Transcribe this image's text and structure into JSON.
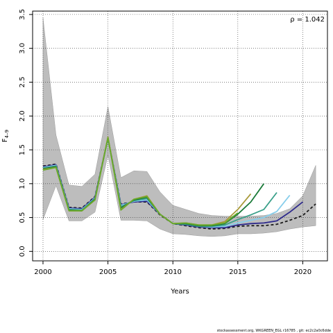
{
  "chart_data": {
    "type": "line",
    "title": "",
    "xlabel": "Years",
    "ylabel": "F",
    "ylabel_sub": "4–9",
    "xlim": [
      1999.2,
      2021.9
    ],
    "ylim": [
      -0.14,
      3.55
    ],
    "x_ticks": [
      2000,
      2005,
      2010,
      2015,
      2020
    ],
    "x_tick_labels": [
      "2000",
      "2005",
      "2010",
      "2015",
      "2020"
    ],
    "y_ticks": [
      0.0,
      0.5,
      1.0,
      1.5,
      2.0,
      2.5,
      3.0,
      3.5
    ],
    "y_tick_labels": [
      "0.0",
      "0.5",
      "1.0",
      "1.5",
      "2.0",
      "2.5",
      "3.0",
      "3.5"
    ],
    "grid": true,
    "annotation": "ρ = 1.042",
    "footer": "stockassessment.org, WKGREEN_EGL r16785 , git: ec2c2a0c6dde",
    "band": {
      "x": [
        2000,
        2001,
        2002,
        2003,
        2004,
        2005,
        2006,
        2007,
        2008,
        2009,
        2010,
        2011,
        2012,
        2013,
        2014,
        2015,
        2016,
        2017,
        2018,
        2019,
        2020,
        2021
      ],
      "lower": [
        0.47,
        0.97,
        0.45,
        0.45,
        0.58,
        1.42,
        0.46,
        0.46,
        0.45,
        0.33,
        0.26,
        0.25,
        0.23,
        0.22,
        0.23,
        0.26,
        0.26,
        0.27,
        0.29,
        0.33,
        0.36,
        0.38
      ],
      "upper": [
        3.45,
        1.72,
        0.98,
        0.96,
        1.14,
        2.14,
        1.09,
        1.19,
        1.18,
        0.88,
        0.68,
        0.62,
        0.56,
        0.53,
        0.52,
        0.52,
        0.52,
        0.53,
        0.56,
        0.63,
        0.82,
        1.27
      ]
    },
    "series": [
      {
        "color": "#1a1a1a",
        "dash": "4,3",
        "x": [
          2000,
          2001,
          2002,
          2003,
          2004,
          2005,
          2006,
          2007,
          2008,
          2009,
          2010,
          2011,
          2012,
          2013,
          2014,
          2015,
          2016,
          2017,
          2018,
          2019,
          2020,
          2021
        ],
        "values": [
          1.26,
          1.29,
          0.65,
          0.64,
          0.81,
          1.67,
          0.7,
          0.73,
          0.73,
          0.54,
          0.41,
          0.38,
          0.35,
          0.33,
          0.34,
          0.37,
          0.38,
          0.38,
          0.4,
          0.46,
          0.53,
          0.7
        ]
      },
      {
        "color": "#2e2a8c",
        "x": [
          2000,
          2001,
          2002,
          2003,
          2004,
          2005,
          2006,
          2007,
          2008,
          2009,
          2010,
          2011,
          2012,
          2013,
          2014,
          2015,
          2016,
          2017,
          2018,
          2019,
          2020
        ],
        "values": [
          1.25,
          1.28,
          0.64,
          0.63,
          0.8,
          1.67,
          0.69,
          0.73,
          0.74,
          0.55,
          0.41,
          0.39,
          0.36,
          0.35,
          0.35,
          0.39,
          0.41,
          0.42,
          0.45,
          0.58,
          0.73
        ]
      },
      {
        "color": "#87ceeb",
        "x": [
          2000,
          2001,
          2002,
          2003,
          2004,
          2005,
          2006,
          2007,
          2008,
          2009,
          2010,
          2011,
          2012,
          2013,
          2014,
          2015,
          2016,
          2017,
          2018,
          2019
        ],
        "values": [
          1.24,
          1.27,
          0.63,
          0.62,
          0.79,
          1.67,
          0.68,
          0.74,
          0.76,
          0.55,
          0.41,
          0.4,
          0.37,
          0.36,
          0.37,
          0.42,
          0.46,
          0.5,
          0.59,
          0.83
        ]
      },
      {
        "color": "#3aa08a",
        "x": [
          2000,
          2001,
          2002,
          2003,
          2004,
          2005,
          2006,
          2007,
          2008,
          2009,
          2010,
          2011,
          2012,
          2013,
          2014,
          2015,
          2016,
          2017,
          2018
        ],
        "values": [
          1.23,
          1.26,
          0.62,
          0.61,
          0.78,
          1.67,
          0.66,
          0.75,
          0.78,
          0.55,
          0.41,
          0.4,
          0.37,
          0.37,
          0.39,
          0.47,
          0.54,
          0.62,
          0.87
        ]
      },
      {
        "color": "#1a7a38",
        "x": [
          2000,
          2001,
          2002,
          2003,
          2004,
          2005,
          2006,
          2007,
          2008,
          2009,
          2010,
          2011,
          2012,
          2013,
          2014,
          2015,
          2016,
          2017
        ],
        "values": [
          1.22,
          1.25,
          0.61,
          0.6,
          0.77,
          1.68,
          0.64,
          0.76,
          0.8,
          0.55,
          0.41,
          0.41,
          0.38,
          0.38,
          0.41,
          0.55,
          0.73,
          1.0
        ]
      },
      {
        "color": "#a89a3a",
        "x": [
          2000,
          2001,
          2002,
          2003,
          2004,
          2005,
          2006,
          2007,
          2008,
          2009,
          2010,
          2011,
          2012,
          2013,
          2014,
          2015,
          2016
        ],
        "values": [
          1.21,
          1.24,
          0.6,
          0.6,
          0.76,
          1.69,
          0.62,
          0.77,
          0.82,
          0.55,
          0.41,
          0.42,
          0.39,
          0.39,
          0.44,
          0.62,
          0.85
        ]
      },
      {
        "color": "#6aaa2a",
        "x": [
          2000,
          2001,
          2002,
          2003,
          2004,
          2005,
          2006,
          2007,
          2008,
          2009,
          2010,
          2011,
          2012,
          2013,
          2014,
          2015
        ],
        "values": [
          1.2,
          1.24,
          0.6,
          0.6,
          0.76,
          1.68,
          0.61,
          0.77,
          0.81,
          0.55,
          0.41,
          0.42,
          0.39,
          0.39,
          0.42,
          0.57
        ]
      }
    ]
  }
}
